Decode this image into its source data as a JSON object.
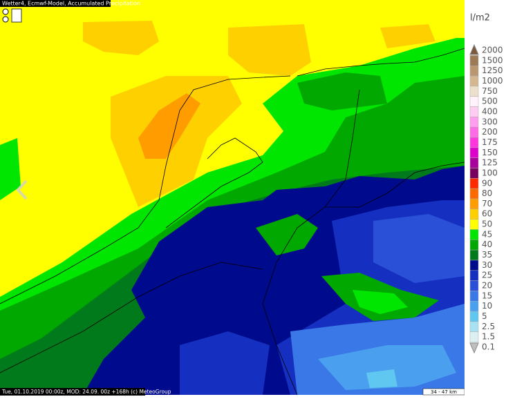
{
  "header": {
    "title": "Wetter4, Ecmwf-Model, Accumulated Precipitation"
  },
  "legend": {
    "unit": "l/m2",
    "items": [
      {
        "label": "2000",
        "color": "#7b5a3c"
      },
      {
        "label": "1500",
        "color": "#9c7a56"
      },
      {
        "label": "1250",
        "color": "#b9976f"
      },
      {
        "label": "1000",
        "color": "#d4b892"
      },
      {
        "label": "750",
        "color": "#ece0cc"
      },
      {
        "label": "500",
        "color": "#fff2fa"
      },
      {
        "label": "400",
        "color": "#ffcdf2"
      },
      {
        "label": "300",
        "color": "#ff9eee"
      },
      {
        "label": "200",
        "color": "#ff6ae6"
      },
      {
        "label": "175",
        "color": "#ff36dc"
      },
      {
        "label": "150",
        "color": "#e000cc"
      },
      {
        "label": "125",
        "color": "#a8009a"
      },
      {
        "label": "100",
        "color": "#78005e"
      },
      {
        "label": "90",
        "color": "#ff2a00"
      },
      {
        "label": "80",
        "color": "#ff6a00"
      },
      {
        "label": "70",
        "color": "#ff9c00"
      },
      {
        "label": "60",
        "color": "#ffd000"
      },
      {
        "label": "50",
        "color": "#ffff00"
      },
      {
        "label": "45",
        "color": "#00e600"
      },
      {
        "label": "40",
        "color": "#00a800"
      },
      {
        "label": "35",
        "color": "#007a1a"
      },
      {
        "label": "30",
        "color": "#000a8c"
      },
      {
        "label": "25",
        "color": "#1530c0"
      },
      {
        "label": "20",
        "color": "#2a50d8"
      },
      {
        "label": "15",
        "color": "#3a78e8"
      },
      {
        "label": "10",
        "color": "#4aa0ee"
      },
      {
        "label": "5",
        "color": "#60c8f0"
      },
      {
        "label": "2.5",
        "color": "#a8e2f2"
      },
      {
        "label": "1.5",
        "color": "#dcf0f2"
      },
      {
        "label": "0.1",
        "color": "#bfbfbf"
      }
    ]
  },
  "footer": {
    "info": "Tue, 01.10.2019 00:00z, MOD: 24.09. 00z +168h (c) MeteoGroup",
    "scale": "34 - 47 km"
  }
}
